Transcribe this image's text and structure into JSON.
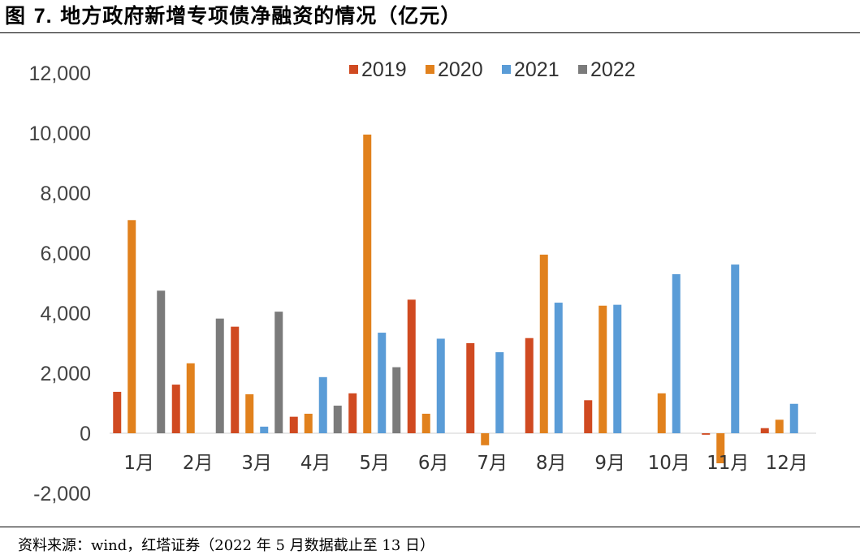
{
  "title": {
    "prefix": "图 ",
    "number": "7.",
    "text": " 地方政府新增专项债净融资的情况（亿元）"
  },
  "source": "资料来源：wind，红塔证券（2022 年 5 月数据截止至 13 日）",
  "chart_data": {
    "type": "bar",
    "categories": [
      "1月",
      "2月",
      "3月",
      "4月",
      "5月",
      "6月",
      "7月",
      "8月",
      "9月",
      "10月",
      "11月",
      "12月"
    ],
    "series": [
      {
        "name": "2019",
        "color": "#D04A21",
        "values": [
          1380,
          1620,
          3550,
          550,
          1330,
          4450,
          3000,
          3170,
          1100,
          0,
          -50,
          170
        ]
      },
      {
        "name": "2020",
        "color": "#E1811D",
        "values": [
          7100,
          2330,
          1300,
          650,
          9950,
          650,
          -400,
          5950,
          4250,
          1330,
          -1000,
          450
        ]
      },
      {
        "name": "2021",
        "color": "#5A9CD7",
        "values": [
          0,
          0,
          220,
          1870,
          3350,
          3150,
          2700,
          4350,
          4280,
          5300,
          5620,
          980
        ]
      },
      {
        "name": "2022",
        "color": "#7B7B7B",
        "values": [
          4750,
          3820,
          4050,
          920,
          2200,
          null,
          null,
          null,
          null,
          null,
          null,
          null
        ]
      }
    ],
    "y_ticks": [
      "12,000",
      "10,000",
      "8,000",
      "6,000",
      "4,000",
      "2,000",
      "0",
      "-2,000"
    ],
    "ylim": [
      -2000,
      12000
    ],
    "legend_position": "top",
    "grid": false
  }
}
